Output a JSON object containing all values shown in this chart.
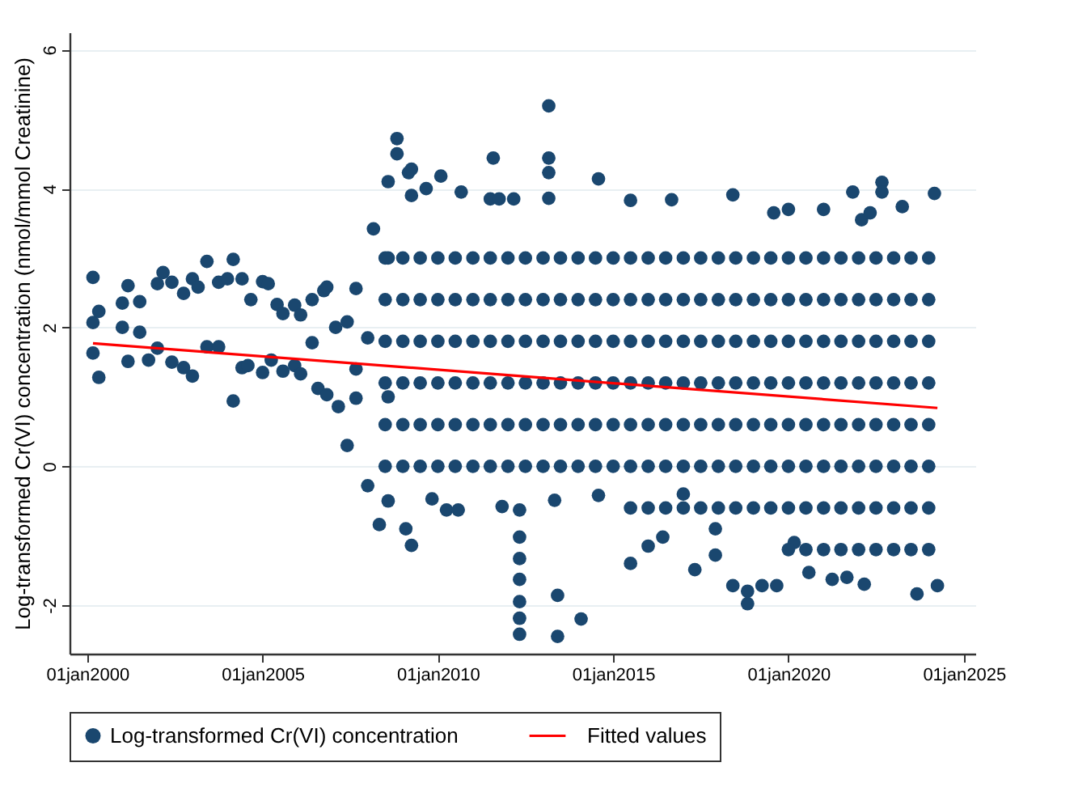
{
  "chart_data": {
    "type": "scatter",
    "ylabel": "Log-transformed Cr(VI) concentration (nmol/mmol Creatinine)",
    "xlim": [
      "1999-07",
      "2025-05"
    ],
    "ylim": [
      -2.7,
      6.25
    ],
    "xticks": [
      {
        "value": "2000-01-01",
        "label": "01jan2000"
      },
      {
        "value": "2005-01-01",
        "label": "01jan2005"
      },
      {
        "value": "2010-01-01",
        "label": "01jan2010"
      },
      {
        "value": "2015-01-01",
        "label": "01jan2015"
      },
      {
        "value": "2020-01-01",
        "label": "01jan2020"
      },
      {
        "value": "2025-01-01",
        "label": "01jan2025"
      }
    ],
    "yticks": [
      -2,
      0,
      2,
      4,
      6
    ],
    "grid": "y",
    "legend": "bottom",
    "series": [
      {
        "name": "Log-transformed Cr(VI) concentration",
        "color": "#1a476f",
        "marker": "circle",
        "x": [
          "2000-03",
          "2000-03",
          "2000-05",
          "2000-03",
          "2000-05",
          "2001-01",
          "2001-01",
          "2001-03",
          "2001-03",
          "2001-07",
          "2001-07",
          "2001-10",
          "2002-01",
          "2002-01",
          "2002-03",
          "2002-06",
          "2002-06",
          "2002-10",
          "2002-10",
          "2003-01",
          "2003-01",
          "2003-03",
          "2003-06",
          "2003-06",
          "2003-10",
          "2003-10",
          "2004-01",
          "2004-03",
          "2004-03",
          "2004-06",
          "2004-06",
          "2004-08",
          "2004-09",
          "2005-01",
          "2005-01",
          "2005-03",
          "2005-04",
          "2005-06",
          "2005-08",
          "2005-08",
          "2005-12",
          "2005-12",
          "2006-02",
          "2006-02",
          "2006-06",
          "2006-06",
          "2006-08",
          "2006-10",
          "2006-11",
          "2006-11",
          "2007-02",
          "2007-03",
          "2007-06",
          "2007-06",
          "2007-09",
          "2007-09",
          "2007-09",
          "2008-01",
          "2008-01",
          "2008-03",
          "2008-05",
          "2008-08",
          "2008-08",
          "2008-08",
          "2008-08",
          "2008-11",
          "2008-11",
          "2009-02",
          "2009-03",
          "2009-04",
          "2009-04",
          "2009-04",
          "2009-09",
          "2009-11",
          "2010-02",
          "2010-04",
          "2010-08",
          "2010-09",
          "2011-07",
          "2011-08",
          "2011-10",
          "2012-03",
          "2013-03",
          "2013-03",
          "2013-03",
          "2013-03",
          "2014-08",
          "2015-07",
          "2016-09",
          "2018-06",
          "2019-08",
          "2020-01",
          "2021-01",
          "2021-11",
          "2022-02",
          "2022-05",
          "2022-09",
          "2022-09",
          "2023-04",
          "2024-03",
          "2011-11",
          "2012-05",
          "2012-05",
          "2012-05",
          "2012-05",
          "2012-05",
          "2012-05",
          "2012-05",
          "2013-05",
          "2013-06",
          "2013-06",
          "2014-02",
          "2014-08",
          "2015-07",
          "2016-01",
          "2016-06",
          "2017-01",
          "2017-05",
          "2017-12",
          "2017-12",
          "2018-06",
          "2018-11",
          "2018-11",
          "2019-04",
          "2019-09",
          "2020-03",
          "2020-08",
          "2021-04",
          "2021-09",
          "2022-03",
          "2023-09",
          "2024-04",
          "2008-07",
          "2008-07",
          "2008-07",
          "2008-07",
          "2008-07",
          "2008-07",
          "2009-01",
          "2009-01",
          "2009-01",
          "2009-01",
          "2009-01",
          "2009-01",
          "2009-07",
          "2009-07",
          "2009-07",
          "2009-07",
          "2009-07",
          "2009-07",
          "2010-01",
          "2010-01",
          "2010-01",
          "2010-01",
          "2010-01",
          "2010-01",
          "2010-07",
          "2010-07",
          "2010-07",
          "2010-07",
          "2010-07",
          "2010-07",
          "2011-01",
          "2011-01",
          "2011-01",
          "2011-01",
          "2011-01",
          "2011-01",
          "2011-07",
          "2011-07",
          "2011-07",
          "2011-07",
          "2011-07",
          "2011-07",
          "2012-01",
          "2012-01",
          "2012-01",
          "2012-01",
          "2012-01",
          "2012-01",
          "2012-07",
          "2012-07",
          "2012-07",
          "2012-07",
          "2012-07",
          "2012-07",
          "2013-01",
          "2013-01",
          "2013-01",
          "2013-01",
          "2013-01",
          "2013-01",
          "2013-07",
          "2013-07",
          "2013-07",
          "2013-07",
          "2013-07",
          "2013-07",
          "2014-01",
          "2014-01",
          "2014-01",
          "2014-01",
          "2014-01",
          "2014-01",
          "2014-07",
          "2014-07",
          "2014-07",
          "2014-07",
          "2014-07",
          "2014-07",
          "2015-01",
          "2015-01",
          "2015-01",
          "2015-01",
          "2015-01",
          "2015-01",
          "2015-07",
          "2015-07",
          "2015-07",
          "2015-07",
          "2015-07",
          "2015-07",
          "2016-01",
          "2016-01",
          "2016-01",
          "2016-01",
          "2016-01",
          "2016-01",
          "2016-07",
          "2016-07",
          "2016-07",
          "2016-07",
          "2016-07",
          "2016-07",
          "2017-01",
          "2017-01",
          "2017-01",
          "2017-01",
          "2017-01",
          "2017-01",
          "2017-07",
          "2017-07",
          "2017-07",
          "2017-07",
          "2017-07",
          "2017-07",
          "2018-01",
          "2018-01",
          "2018-01",
          "2018-01",
          "2018-01",
          "2018-01",
          "2018-07",
          "2018-07",
          "2018-07",
          "2018-07",
          "2018-07",
          "2018-07",
          "2019-01",
          "2019-01",
          "2019-01",
          "2019-01",
          "2019-01",
          "2019-01",
          "2019-07",
          "2019-07",
          "2019-07",
          "2019-07",
          "2019-07",
          "2019-07",
          "2020-01",
          "2020-01",
          "2020-01",
          "2020-01",
          "2020-01",
          "2020-01",
          "2020-07",
          "2020-07",
          "2020-07",
          "2020-07",
          "2020-07",
          "2020-07",
          "2021-01",
          "2021-01",
          "2021-01",
          "2021-01",
          "2021-01",
          "2021-01",
          "2021-07",
          "2021-07",
          "2021-07",
          "2021-07",
          "2021-07",
          "2021-07",
          "2022-01",
          "2022-01",
          "2022-01",
          "2022-01",
          "2022-01",
          "2022-01",
          "2022-07",
          "2022-07",
          "2022-07",
          "2022-07",
          "2022-07",
          "2022-07",
          "2023-01",
          "2023-01",
          "2023-01",
          "2023-01",
          "2023-01",
          "2023-01",
          "2023-07",
          "2023-07",
          "2023-07",
          "2023-07",
          "2023-07",
          "2023-07",
          "2024-01",
          "2024-01",
          "2024-01",
          "2024-01",
          "2024-01",
          "2024-01",
          "2015-07",
          "2016-01",
          "2016-07",
          "2017-01",
          "2017-07",
          "2018-01",
          "2018-07",
          "2019-01",
          "2019-07",
          "2020-01",
          "2020-07",
          "2021-01",
          "2021-07",
          "2022-01",
          "2022-07",
          "2023-01",
          "2023-07",
          "2024-01",
          "2020-01",
          "2020-07",
          "2021-01",
          "2021-07",
          "2022-01",
          "2022-07",
          "2023-01",
          "2023-07",
          "2024-01"
        ],
        "values": [
          2.72,
          2.07,
          2.23,
          1.63,
          1.28,
          2.0,
          2.35,
          2.6,
          1.51,
          2.37,
          1.93,
          1.53,
          2.63,
          1.7,
          2.79,
          2.65,
          1.5,
          2.49,
          1.42,
          2.7,
          1.3,
          2.58,
          2.95,
          1.72,
          2.65,
          1.72,
          2.7,
          2.98,
          0.94,
          2.7,
          1.42,
          1.45,
          2.4,
          2.66,
          1.35,
          2.63,
          1.53,
          2.33,
          2.2,
          1.37,
          2.32,
          1.45,
          2.18,
          1.33,
          2.4,
          1.78,
          1.12,
          2.53,
          2.58,
          1.03,
          2.0,
          0.86,
          2.08,
          0.3,
          2.56,
          1.4,
          0.98,
          1.85,
          -0.28,
          3.42,
          -0.84,
          4.1,
          3.0,
          1.0,
          -0.5,
          4.72,
          4.5,
          -0.9,
          4.23,
          4.28,
          3.9,
          -1.14,
          4.0,
          -0.47,
          4.18,
          -0.63,
          -0.63,
          3.95,
          3.85,
          4.44,
          3.85,
          3.85,
          5.19,
          4.44,
          4.23,
          3.86,
          4.14,
          3.83,
          3.84,
          3.91,
          3.65,
          3.7,
          3.7,
          3.95,
          3.55,
          3.65,
          4.09,
          3.95,
          3.74,
          3.93,
          -0.58,
          -0.63,
          -1.02,
          -1.33,
          -1.63,
          -1.95,
          -2.19,
          -2.42,
          -0.49,
          -1.86,
          -2.45,
          -2.2,
          -0.42,
          -1.4,
          -1.15,
          -1.02,
          -0.4,
          -1.49,
          -1.28,
          -0.9,
          -1.72,
          -1.98,
          -1.8,
          -1.72,
          -1.72,
          -1.1,
          -1.53,
          -1.63,
          -1.6,
          -1.7,
          -1.84,
          -1.72,
          0,
          0.6,
          1.2,
          1.8,
          2.4,
          3.0,
          0,
          0.6,
          1.2,
          1.8,
          2.4,
          3.0,
          0,
          0.6,
          1.2,
          1.8,
          2.4,
          3.0,
          0,
          0.6,
          1.2,
          1.8,
          2.4,
          3.0,
          0,
          0.6,
          1.2,
          1.8,
          2.4,
          3.0,
          0,
          0.6,
          1.2,
          1.8,
          2.4,
          3.0,
          0,
          0.6,
          1.2,
          1.8,
          2.4,
          3.0,
          0,
          0.6,
          1.2,
          1.8,
          2.4,
          3.0,
          0,
          0.6,
          1.2,
          1.8,
          2.4,
          3.0,
          0,
          0.6,
          1.2,
          1.8,
          2.4,
          3.0,
          0,
          0.6,
          1.2,
          1.8,
          2.4,
          3.0,
          0,
          0.6,
          1.2,
          1.8,
          2.4,
          3.0,
          0,
          0.6,
          1.2,
          1.8,
          2.4,
          3.0,
          0,
          0.6,
          1.2,
          1.8,
          2.4,
          3.0,
          0,
          0.6,
          1.2,
          1.8,
          2.4,
          3.0,
          0,
          0.6,
          1.2,
          1.8,
          2.4,
          3.0,
          0,
          0.6,
          1.2,
          1.8,
          2.4,
          3.0,
          0,
          0.6,
          1.2,
          1.8,
          2.4,
          3.0,
          0,
          0.6,
          1.2,
          1.8,
          2.4,
          3.0,
          0,
          0.6,
          1.2,
          1.8,
          2.4,
          3.0,
          0,
          0.6,
          1.2,
          1.8,
          2.4,
          3.0,
          0,
          0.6,
          1.2,
          1.8,
          2.4,
          3.0,
          0,
          0.6,
          1.2,
          1.8,
          2.4,
          3.0,
          0,
          0.6,
          1.2,
          1.8,
          2.4,
          3.0,
          0,
          0.6,
          1.2,
          1.8,
          2.4,
          3.0,
          0,
          0.6,
          1.2,
          1.8,
          2.4,
          3.0,
          0,
          0.6,
          1.2,
          1.8,
          2.4,
          3.0,
          0,
          0.6,
          1.2,
          1.8,
          2.4,
          3.0,
          0,
          0.6,
          1.2,
          1.8,
          2.4,
          3.0,
          0,
          0.6,
          1.2,
          1.8,
          2.4,
          3.0,
          0,
          0.6,
          1.2,
          1.8,
          2.4,
          3.0,
          0,
          0.6,
          1.2,
          1.8,
          2.4,
          3.0,
          -0.6,
          -0.6,
          -0.6,
          -0.6,
          -0.6,
          -0.6,
          -0.6,
          -0.6,
          -0.6,
          -0.6,
          -0.6,
          -0.6,
          -0.6,
          -0.6,
          -0.6,
          -0.6,
          -0.6,
          -0.6,
          -1.2,
          -1.2,
          -1.2,
          -1.2,
          -1.2,
          -1.2,
          -1.2,
          -1.2,
          -1.2
        ]
      },
      {
        "name": "Fitted values",
        "color": "#ff0000",
        "type": "line",
        "x": [
          "2000-03",
          "2024-04"
        ],
        "values": [
          1.77,
          0.84
        ]
      }
    ]
  }
}
